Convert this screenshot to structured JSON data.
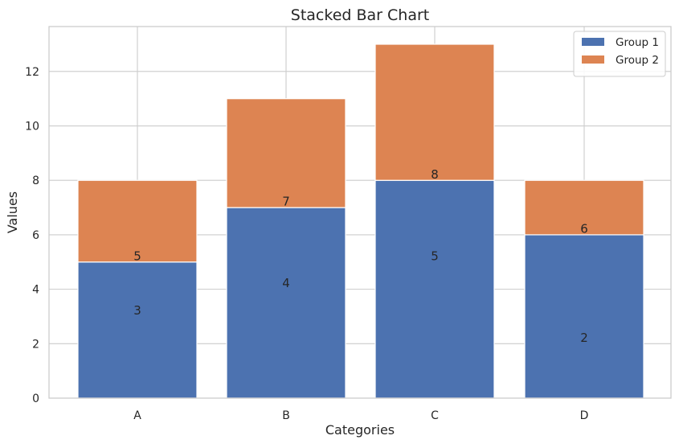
{
  "chart_data": {
    "type": "bar",
    "stacked": true,
    "title": "Stacked Bar Chart",
    "xlabel": "Categories",
    "ylabel": "Values",
    "categories": [
      "A",
      "B",
      "C",
      "D"
    ],
    "series": [
      {
        "name": "Group 1",
        "values": [
          5,
          7,
          8,
          6
        ],
        "color": "#4c72b0"
      },
      {
        "name": "Group 2",
        "values": [
          3,
          4,
          5,
          2
        ],
        "color": "#dd8452"
      }
    ],
    "data_labels": [
      {
        "category": "A",
        "text": "3",
        "y": 3.25
      },
      {
        "category": "A",
        "text": "5",
        "y": 5.25
      },
      {
        "category": "B",
        "text": "4",
        "y": 4.25
      },
      {
        "category": "B",
        "text": "7",
        "y": 7.25
      },
      {
        "category": "C",
        "text": "5",
        "y": 5.25
      },
      {
        "category": "C",
        "text": "8",
        "y": 8.25
      },
      {
        "category": "D",
        "text": "2",
        "y": 2.25
      },
      {
        "category": "D",
        "text": "6",
        "y": 6.25
      }
    ],
    "ylim": [
      0,
      13.65
    ],
    "yticks": [
      0,
      2,
      4,
      6,
      8,
      10,
      12
    ],
    "grid": true,
    "legend_position": "top-right",
    "colors": {
      "grid": "#cccccc",
      "frame": "#cccccc",
      "text": "#262626",
      "bar_edge": "#ffffff"
    }
  }
}
